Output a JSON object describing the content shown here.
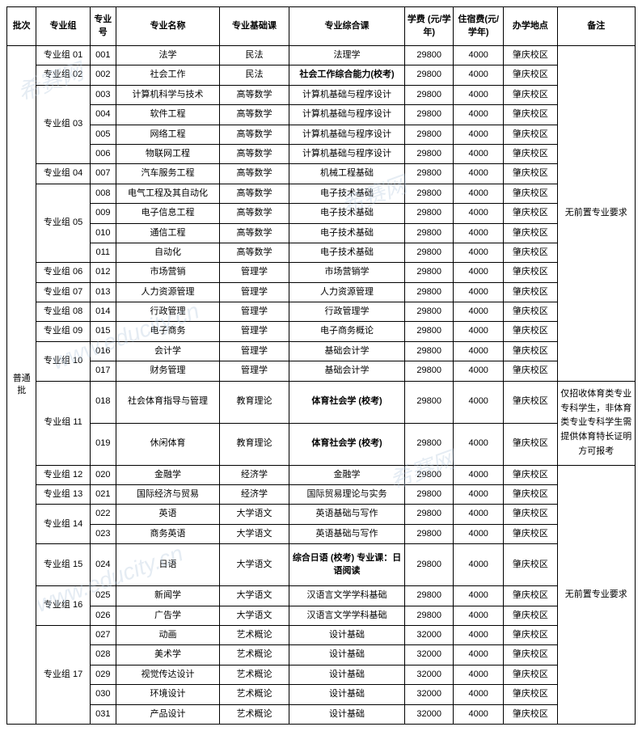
{
  "headers": {
    "batch": "批次",
    "group": "专业组",
    "num": "专业号",
    "name": "专业名称",
    "basic": "专业基础课",
    "comp": "专业综合课",
    "tuition": "学费 (元/学年)",
    "dorm": "住宿费(元/学年)",
    "loc": "办学地点",
    "note": "备注"
  },
  "batch_label": "普通批",
  "notes": {
    "none": "无前置专业要求",
    "pe": "仅招收体育类专业专科学生，非体育类专业专科学生需提供体育特长证明方可报考",
    "none2": "无前置专业要求"
  },
  "rows": [
    {
      "group": "专业组 01",
      "num": "001",
      "name": "法学",
      "basic": "民法",
      "comp": "法理学",
      "tuition": "29800",
      "dorm": "4000",
      "loc": "肇庆校区",
      "bold": false
    },
    {
      "group": "专业组 02",
      "num": "002",
      "name": "社会工作",
      "basic": "民法",
      "comp": "社会工作综合能力(校考)",
      "tuition": "29800",
      "dorm": "4000",
      "loc": "肇庆校区",
      "bold": true
    },
    {
      "group": "专业组 03",
      "rowspan": 4,
      "num": "003",
      "name": "计算机科学与技术",
      "basic": "高等数学",
      "comp": "计算机基础与程序设计",
      "tuition": "29800",
      "dorm": "4000",
      "loc": "肇庆校区",
      "bold": false
    },
    {
      "num": "004",
      "name": "软件工程",
      "basic": "高等数学",
      "comp": "计算机基础与程序设计",
      "tuition": "29800",
      "dorm": "4000",
      "loc": "肇庆校区",
      "bold": false
    },
    {
      "num": "005",
      "name": "网络工程",
      "basic": "高等数学",
      "comp": "计算机基础与程序设计",
      "tuition": "29800",
      "dorm": "4000",
      "loc": "肇庆校区",
      "bold": false
    },
    {
      "num": "006",
      "name": "物联网工程",
      "basic": "高等数学",
      "comp": "计算机基础与程序设计",
      "tuition": "29800",
      "dorm": "4000",
      "loc": "肇庆校区",
      "bold": false
    },
    {
      "group": "专业组 04",
      "num": "007",
      "name": "汽车服务工程",
      "basic": "高等数学",
      "comp": "机械工程基础",
      "tuition": "29800",
      "dorm": "4000",
      "loc": "肇庆校区",
      "bold": false
    },
    {
      "group": "专业组 05",
      "rowspan": 4,
      "num": "008",
      "name": "电气工程及其自动化",
      "basic": "高等数学",
      "comp": "电子技术基础",
      "tuition": "29800",
      "dorm": "4000",
      "loc": "肇庆校区",
      "bold": false
    },
    {
      "num": "009",
      "name": "电子信息工程",
      "basic": "高等数学",
      "comp": "电子技术基础",
      "tuition": "29800",
      "dorm": "4000",
      "loc": "肇庆校区",
      "bold": false
    },
    {
      "num": "010",
      "name": "通信工程",
      "basic": "高等数学",
      "comp": "电子技术基础",
      "tuition": "29800",
      "dorm": "4000",
      "loc": "肇庆校区",
      "bold": false
    },
    {
      "num": "011",
      "name": "自动化",
      "basic": "高等数学",
      "comp": "电子技术基础",
      "tuition": "29800",
      "dorm": "4000",
      "loc": "肇庆校区",
      "bold": false
    },
    {
      "group": "专业组 06",
      "num": "012",
      "name": "市场营销",
      "basic": "管理学",
      "comp": "市场营销学",
      "tuition": "29800",
      "dorm": "4000",
      "loc": "肇庆校区",
      "bold": false
    },
    {
      "group": "专业组 07",
      "num": "013",
      "name": "人力资源管理",
      "basic": "管理学",
      "comp": "人力资源管理",
      "tuition": "29800",
      "dorm": "4000",
      "loc": "肇庆校区",
      "bold": false
    },
    {
      "group": "专业组 08",
      "num": "014",
      "name": "行政管理",
      "basic": "管理学",
      "comp": "行政管理学",
      "tuition": "29800",
      "dorm": "4000",
      "loc": "肇庆校区",
      "bold": false
    },
    {
      "group": "专业组 09",
      "num": "015",
      "name": "电子商务",
      "basic": "管理学",
      "comp": "电子商务概论",
      "tuition": "29800",
      "dorm": "4000",
      "loc": "肇庆校区",
      "bold": false
    },
    {
      "group": "专业组 10",
      "rowspan": 2,
      "num": "016",
      "name": "会计学",
      "basic": "管理学",
      "comp": "基础会计学",
      "tuition": "29800",
      "dorm": "4000",
      "loc": "肇庆校区",
      "bold": false
    },
    {
      "num": "017",
      "name": "财务管理",
      "basic": "管理学",
      "comp": "基础会计学",
      "tuition": "29800",
      "dorm": "4000",
      "loc": "肇庆校区",
      "bold": false
    },
    {
      "group": "专业组 11",
      "rowspan": 2,
      "num": "018",
      "name": "社会体育指导与管理",
      "basic": "教育理论",
      "comp": "体育社会学 (校考)",
      "tuition": "29800",
      "dorm": "4000",
      "loc": "肇庆校区",
      "bold": true,
      "tall": true,
      "note": "pe",
      "note_rowspan": 2
    },
    {
      "num": "019",
      "name": "休闲体育",
      "basic": "教育理论",
      "comp": "体育社会学 (校考)",
      "tuition": "29800",
      "dorm": "4000",
      "loc": "肇庆校区",
      "bold": true,
      "tall": true
    },
    {
      "group": "专业组 12",
      "num": "020",
      "name": "金融学",
      "basic": "经济学",
      "comp": "金融学",
      "tuition": "29800",
      "dorm": "4000",
      "loc": "肇庆校区",
      "bold": false
    },
    {
      "group": "专业组 13",
      "num": "021",
      "name": "国际经济与贸易",
      "basic": "经济学",
      "comp": "国际贸易理论与实务",
      "tuition": "29800",
      "dorm": "4000",
      "loc": "肇庆校区",
      "bold": false
    },
    {
      "group": "专业组 14",
      "rowspan": 2,
      "num": "022",
      "name": "英语",
      "basic": "大学语文",
      "comp": "英语基础与写作",
      "tuition": "29800",
      "dorm": "4000",
      "loc": "肇庆校区",
      "bold": false
    },
    {
      "num": "023",
      "name": "商务英语",
      "basic": "大学语文",
      "comp": "英语基础与写作",
      "tuition": "29800",
      "dorm": "4000",
      "loc": "肇庆校区",
      "bold": false
    },
    {
      "group": "专业组 15",
      "num": "024",
      "name": "日语",
      "basic": "大学语文",
      "comp": "综合日语 (校考) 专业课：日语阅读",
      "tuition": "29800",
      "dorm": "4000",
      "loc": "肇庆校区",
      "bold": true,
      "tall": true
    },
    {
      "group": "专业组 16",
      "rowspan": 2,
      "num": "025",
      "name": "新闻学",
      "basic": "大学语文",
      "comp": "汉语言文学学科基础",
      "tuition": "29800",
      "dorm": "4000",
      "loc": "肇庆校区",
      "bold": false
    },
    {
      "num": "026",
      "name": "广告学",
      "basic": "大学语文",
      "comp": "汉语言文学学科基础",
      "tuition": "29800",
      "dorm": "4000",
      "loc": "肇庆校区",
      "bold": false
    },
    {
      "group": "专业组 17",
      "rowspan": 5,
      "num": "027",
      "name": "动画",
      "basic": "艺术概论",
      "comp": "设计基础",
      "tuition": "32000",
      "dorm": "4000",
      "loc": "肇庆校区",
      "bold": false
    },
    {
      "num": "028",
      "name": "美术学",
      "basic": "艺术概论",
      "comp": "设计基础",
      "tuition": "32000",
      "dorm": "4000",
      "loc": "肇庆校区",
      "bold": false
    },
    {
      "num": "029",
      "name": "视觉传达设计",
      "basic": "艺术概论",
      "comp": "设计基础",
      "tuition": "32000",
      "dorm": "4000",
      "loc": "肇庆校区",
      "bold": false
    },
    {
      "num": "030",
      "name": "环境设计",
      "basic": "艺术概论",
      "comp": "设计基础",
      "tuition": "32000",
      "dorm": "4000",
      "loc": "肇庆校区",
      "bold": false
    },
    {
      "num": "031",
      "name": "产品设计",
      "basic": "艺术概论",
      "comp": "设计基础",
      "tuition": "32000",
      "dorm": "4000",
      "loc": "肇庆校区",
      "bold": false
    }
  ],
  "watermarks": [
    "希赛网",
    "www.educity.cn"
  ]
}
